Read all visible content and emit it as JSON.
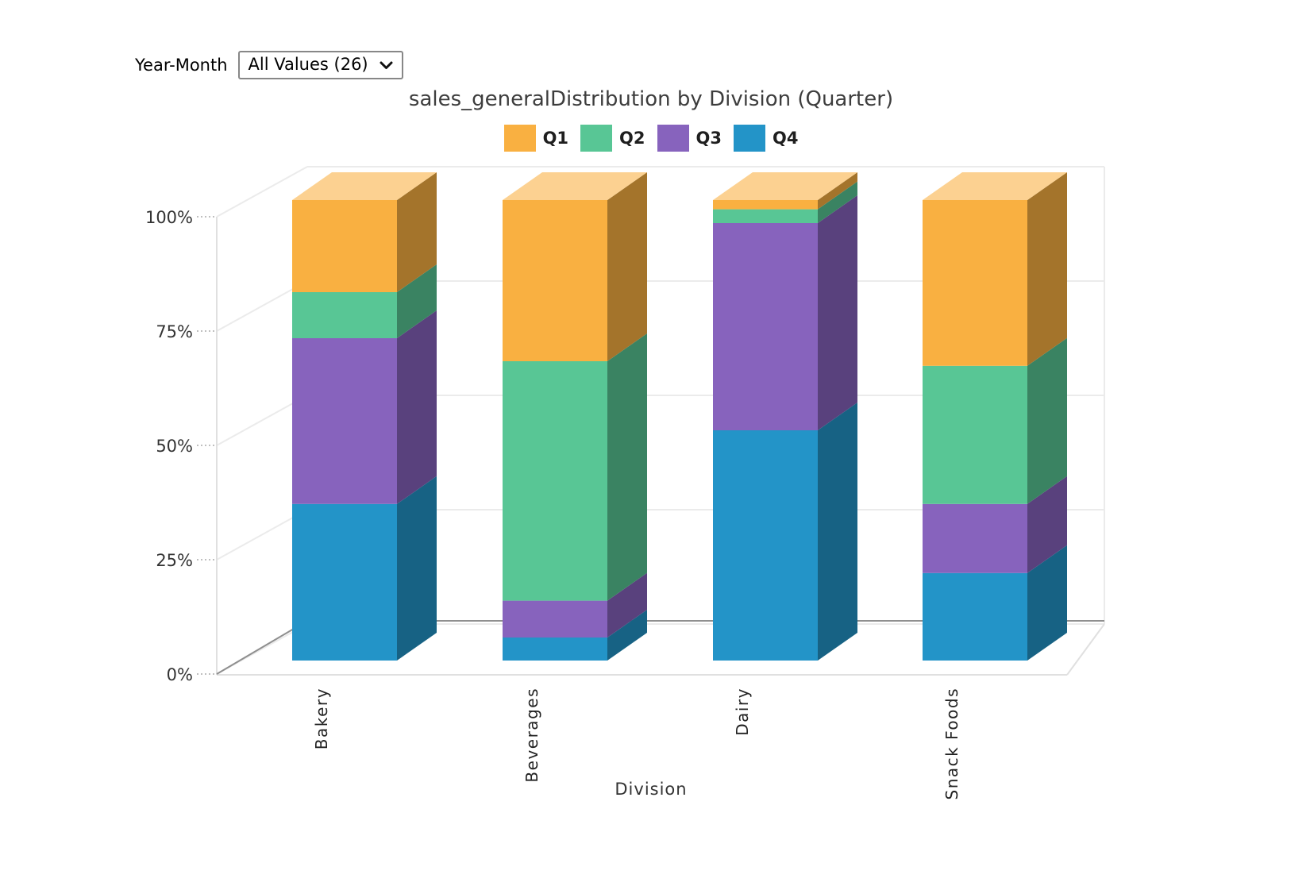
{
  "filter": {
    "label": "Year-Month",
    "value": "All Values (26)"
  },
  "chart_data": {
    "type": "bar",
    "variant": "3d-stacked-percent-columns",
    "title": "sales_generalDistribution by Division (Quarter)",
    "xlabel": "Division",
    "ylabel": "",
    "categories": [
      "Bakery",
      "Beverages",
      "Dairy",
      "Snack Foods"
    ],
    "series": [
      {
        "name": "Q1",
        "color": "#F9B041",
        "values": [
          20,
          35,
          2,
          36
        ]
      },
      {
        "name": "Q2",
        "color": "#58C695",
        "values": [
          10,
          52,
          3,
          30
        ]
      },
      {
        "name": "Q3",
        "color": "#8763BD",
        "values": [
          36,
          8,
          45,
          15
        ]
      },
      {
        "name": "Q4",
        "color": "#2394C8",
        "values": [
          34,
          5,
          50,
          19
        ]
      }
    ],
    "stack_order_bottom_to_top": [
      "Q4",
      "Q3",
      "Q2",
      "Q1"
    ],
    "y_ticks": [
      "0%",
      "25%",
      "50%",
      "75%",
      "100%"
    ],
    "ylim": [
      0,
      100
    ],
    "legend_position": "top",
    "grid": true
  },
  "style_colors": {
    "grid": "#ebebeb",
    "axis": "#e0e0e0",
    "baseline": "#8f8f8f",
    "tick_text": "#333333",
    "category_text": "#222222",
    "title_text": "#3d3d3d"
  }
}
